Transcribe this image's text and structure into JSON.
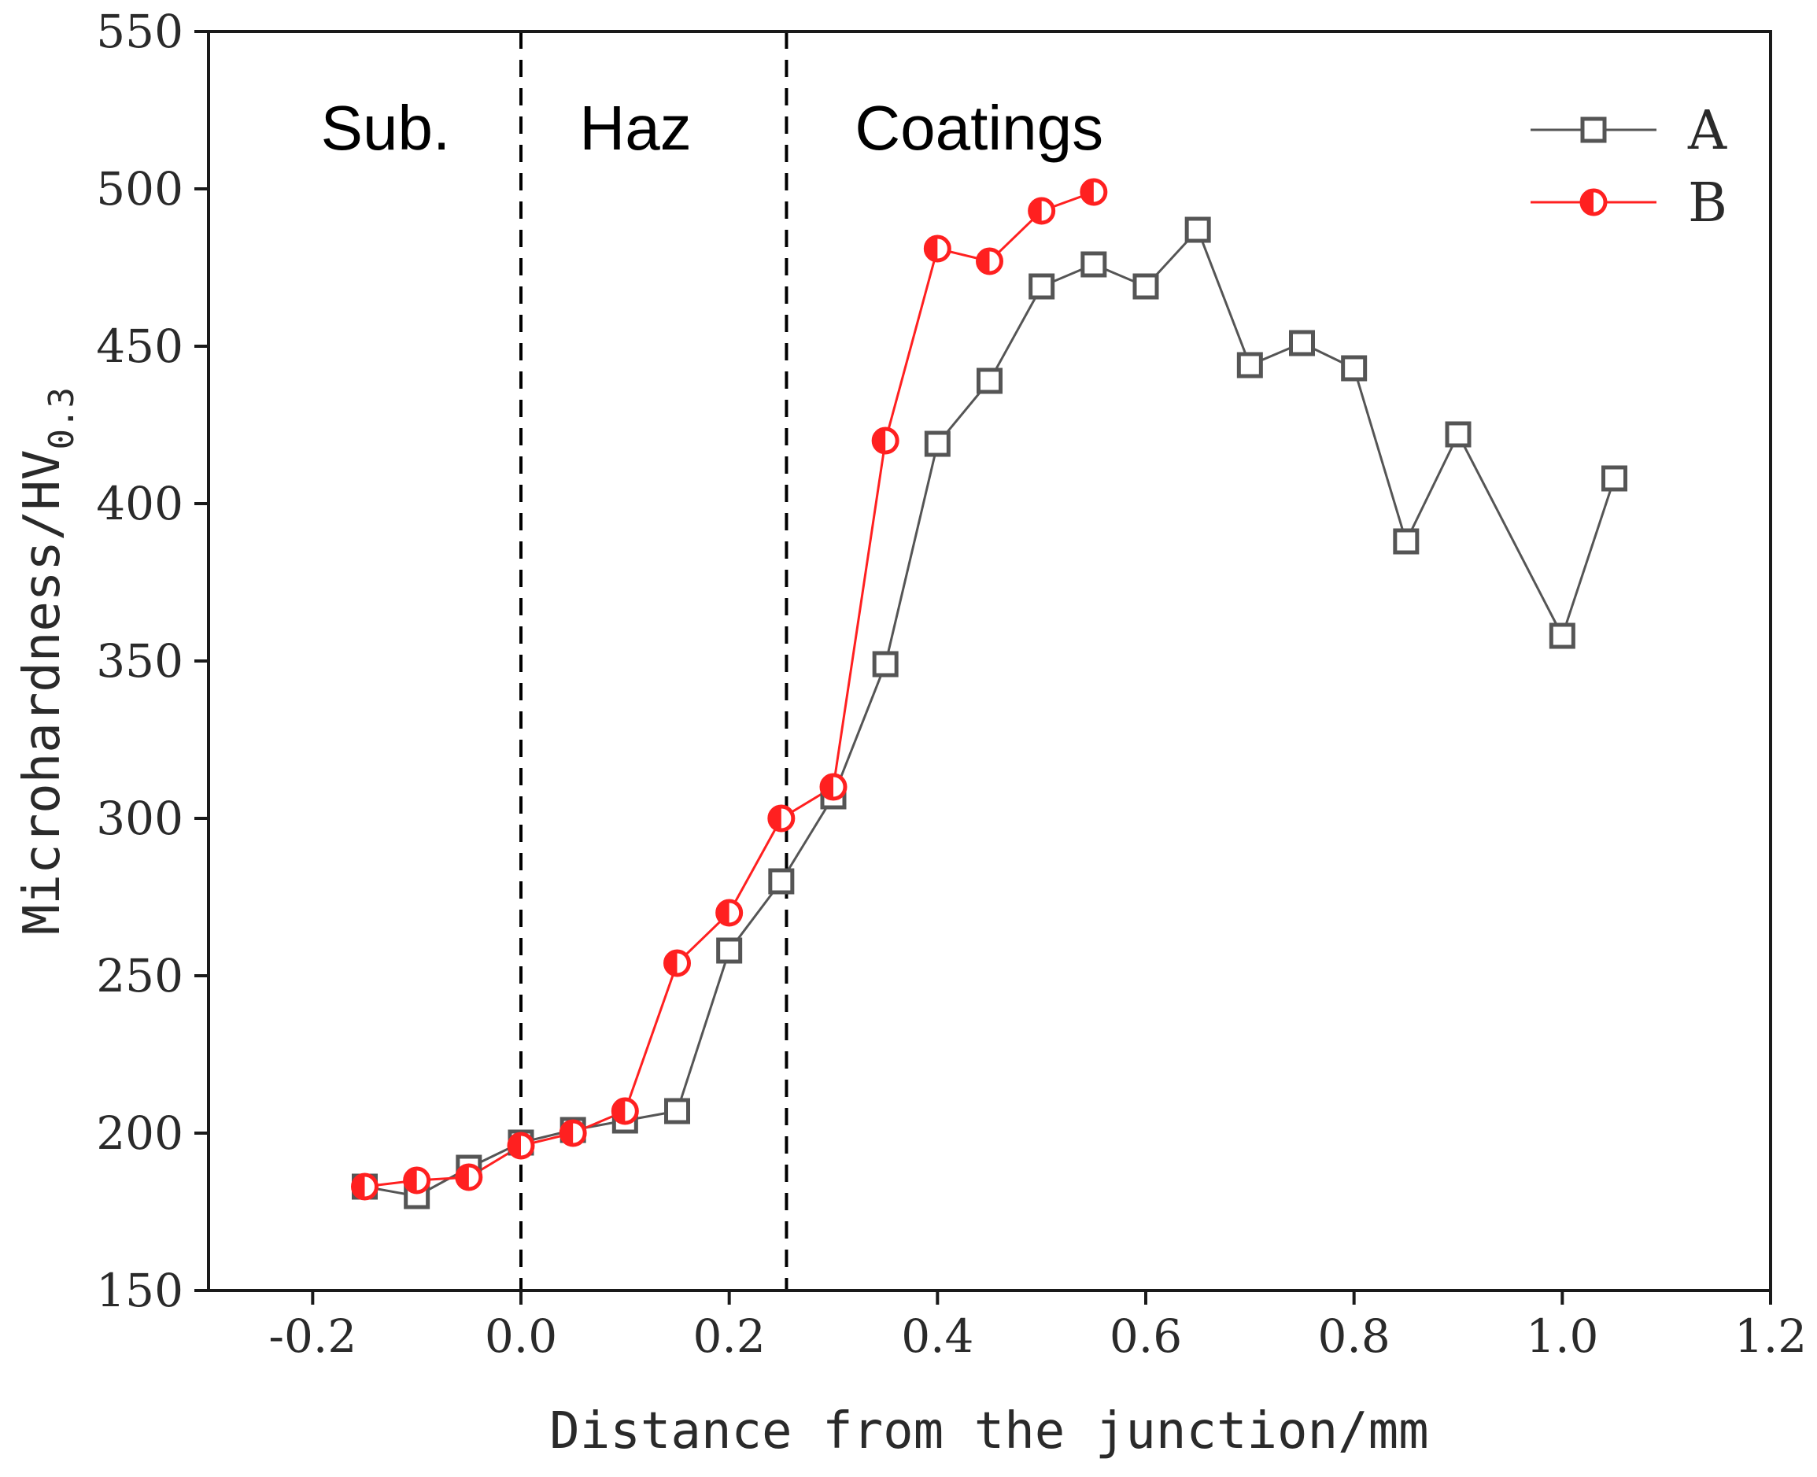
{
  "chart_data": {
    "type": "line",
    "title": "",
    "xlabel": "Distance from the junction/mm",
    "ylabel_main": "Microhardness/HV",
    "ylabel_sub": "0.3",
    "xlim": [
      -0.3,
      1.2
    ],
    "ylim": [
      150,
      550
    ],
    "xticks": [
      -0.2,
      0.0,
      0.2,
      0.4,
      0.6,
      0.8,
      1.0,
      1.2
    ],
    "xtick_labels": [
      "-0.2",
      "0.0",
      "0.2",
      "0.4",
      "0.6",
      "0.8",
      "1.0",
      "1.2"
    ],
    "yticks": [
      150,
      200,
      250,
      300,
      350,
      400,
      450,
      500,
      550
    ],
    "ytick_labels": [
      "150",
      "200",
      "250",
      "300",
      "350",
      "400",
      "450",
      "500",
      "550"
    ],
    "boundaries": [
      0.0,
      0.255
    ],
    "regions": [
      {
        "label": "Sub.",
        "x": -0.13
      },
      {
        "label": "Haz",
        "x": 0.11
      },
      {
        "label": "Coatings",
        "x": 0.44
      }
    ],
    "series": [
      {
        "name": "A",
        "color": "#555555",
        "marker": "square",
        "x": [
          -0.15,
          -0.1,
          -0.05,
          0.0,
          0.05,
          0.1,
          0.15,
          0.2,
          0.25,
          0.3,
          0.35,
          0.4,
          0.45,
          0.5,
          0.55,
          0.6,
          0.65,
          0.7,
          0.75,
          0.8,
          0.85,
          0.9,
          1.0,
          1.05
        ],
        "values": [
          183,
          180,
          189,
          197,
          201,
          204,
          207,
          258,
          280,
          307,
          349,
          419,
          439,
          469,
          476,
          469,
          487,
          444,
          451,
          443,
          388,
          422,
          358,
          408
        ]
      },
      {
        "name": "B",
        "color": "#ff2020",
        "marker": "circle",
        "x": [
          -0.15,
          -0.1,
          -0.05,
          0.0,
          0.05,
          0.1,
          0.15,
          0.2,
          0.25,
          0.3,
          0.35,
          0.4,
          0.45,
          0.5,
          0.55
        ],
        "values": [
          183,
          185,
          186,
          196,
          200,
          207,
          254,
          270,
          300,
          310,
          420,
          481,
          477,
          493,
          499
        ]
      }
    ],
    "legend_position": "top-right"
  }
}
